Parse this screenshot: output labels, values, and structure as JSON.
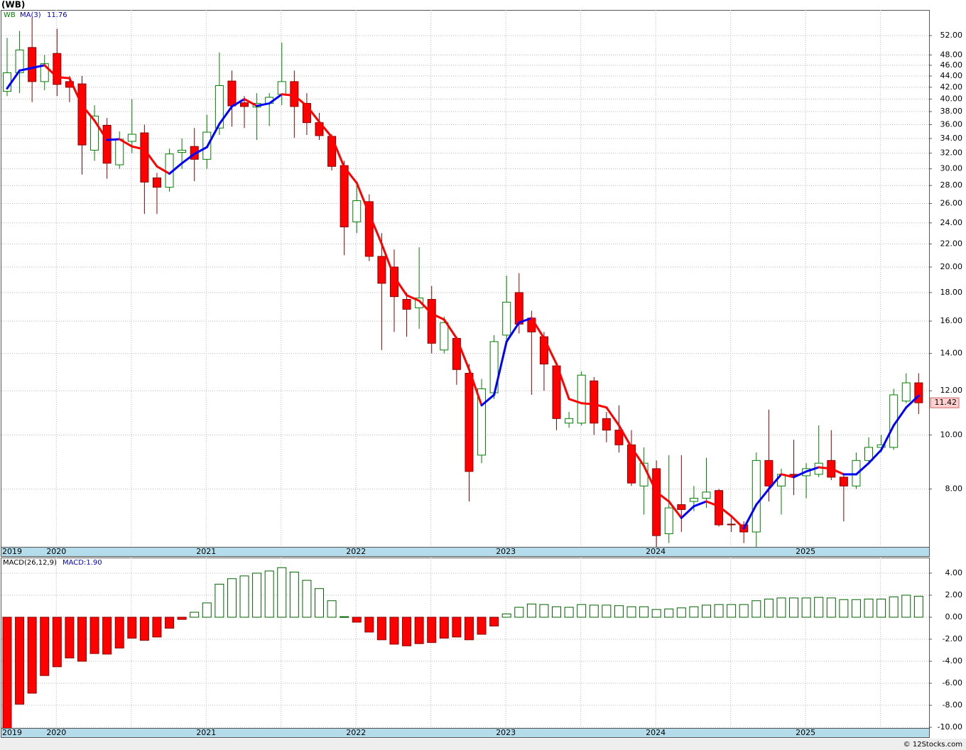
{
  "footer": "© 12Stocks.com",
  "chart_data": [
    {
      "type": "candlestick",
      "title": "(WB)",
      "symbol": "WB",
      "log": true,
      "grid": true,
      "categories": [
        "2019",
        null,
        null,
        null,
        "2020",
        null,
        null,
        null,
        null,
        null,
        null,
        null,
        null,
        null,
        null,
        null,
        "2021",
        null,
        null,
        null,
        null,
        null,
        null,
        null,
        null,
        null,
        null,
        null,
        "2022",
        null,
        null,
        null,
        null,
        null,
        null,
        null,
        null,
        null,
        null,
        null,
        "2023",
        null,
        null,
        null,
        null,
        null,
        null,
        null,
        null,
        null,
        null,
        null,
        "2024",
        null,
        null,
        null,
        null,
        null,
        null,
        null,
        null,
        null,
        null,
        null,
        "2025",
        null,
        null,
        null,
        null,
        null,
        null,
        null,
        null,
        null
      ],
      "open": [
        41.3,
        44.6,
        49.5,
        43,
        48.3,
        43,
        42.6,
        32.4,
        35.9,
        30.5,
        33.6,
        34.8,
        28.9,
        27.8,
        32.1,
        32.9,
        31.2,
        35.5,
        43.1,
        39.4,
        38.7,
        39.3,
        40.8,
        43,
        39.3,
        36.3,
        34.3,
        30.4,
        24.1,
        26.2,
        20.9,
        20,
        17.5,
        16.9,
        17.5,
        14.2,
        14.9,
        12.9,
        9.2,
        11.9,
        15.1,
        18,
        16.2,
        15,
        13.3,
        10.5,
        10.5,
        12.5,
        10.7,
        10.2,
        9.6,
        8.1,
        8.7,
        6.65,
        7.5,
        7.6,
        7.7,
        7.95,
        6.92,
        6.9,
        6.7,
        9.0,
        8.1,
        8.5,
        8.45,
        8.5,
        9.0,
        8.4,
        8.1,
        9.0,
        9.5,
        9.5,
        11.5,
        12.4
      ],
      "high": [
        51.5,
        53,
        56,
        48,
        53.5,
        44,
        44,
        39,
        37,
        35,
        40,
        36,
        29.5,
        32.6,
        34,
        35.5,
        37.5,
        48.5,
        45,
        40.5,
        41,
        41,
        50.5,
        45,
        41,
        37.8,
        34.6,
        31,
        28,
        27,
        23,
        21.5,
        18,
        21.7,
        18.5,
        16.3,
        15,
        13.4,
        12.6,
        15.1,
        19.3,
        19.5,
        16.7,
        15.3,
        13.5,
        11,
        13,
        12.7,
        11,
        11.3,
        10.2,
        9.5,
        9,
        9.2,
        9.2,
        8.1,
        9.1,
        8.0,
        7.1,
        7.0,
        9.3,
        11.1,
        8.7,
        9.8,
        8.9,
        10.4,
        10.2,
        8.5,
        9.3,
        9.9,
        10,
        12.1,
        12.9,
        12.9
      ],
      "low": [
        40.5,
        41,
        39.5,
        41.5,
        40.5,
        39.5,
        29.3,
        31,
        28.8,
        30,
        32,
        24.9,
        24.9,
        27.3,
        30,
        28.5,
        30,
        34.5,
        35.7,
        35.5,
        33.8,
        35.8,
        39,
        34.1,
        34.5,
        33.8,
        29.8,
        21,
        23,
        20.5,
        14.2,
        15.3,
        15,
        15.5,
        14,
        14,
        12.3,
        7.6,
        8.9,
        11.6,
        14.8,
        15.2,
        11.8,
        12,
        10.2,
        10.3,
        10.4,
        10,
        9.7,
        9.3,
        8.1,
        7.2,
        6.3,
        6.4,
        6.7,
        7.3,
        7.4,
        6.85,
        6.7,
        6.4,
        6.3,
        7.6,
        7.2,
        7.8,
        7.7,
        8.4,
        8.3,
        7.0,
        8.0,
        8.9,
        9.3,
        9.4,
        11.4,
        10.9
      ],
      "close": [
        44.6,
        49,
        43,
        46.3,
        42.5,
        42,
        33.1,
        37.3,
        30.7,
        33.9,
        34.6,
        28.4,
        27.8,
        31.9,
        32.4,
        31.2,
        34.9,
        42.3,
        38.9,
        38.8,
        39.3,
        40.3,
        43,
        38.8,
        36.3,
        34.4,
        30.3,
        23.6,
        26.3,
        20.9,
        18.7,
        17.7,
        16.8,
        17.6,
        14.6,
        15.9,
        13.1,
        8.6,
        12.1,
        14.7,
        17.3,
        15.8,
        15.3,
        13.4,
        10.7,
        10.7,
        12.8,
        10.5,
        10.2,
        9.6,
        8.2,
        8.9,
        6.6,
        7.4,
        7.35,
        7.7,
        7.9,
        6.9,
        6.9,
        6.7,
        9.0,
        8.1,
        8.5,
        8.45,
        8.7,
        8.9,
        8.4,
        8.1,
        9.0,
        9.5,
        9.6,
        11.8,
        12.4,
        11.42
      ],
      "up_color": "#008000",
      "down_color": "#ff0000",
      "down_edge": "#8b0000",
      "series": [
        {
          "name": "MA(3)",
          "up_color": "#0000ff",
          "down_color": "#ff0000",
          "values": [
            41.8,
            45,
            45.5,
            46,
            43.8,
            43.6,
            39,
            36.6,
            33.8,
            33.9,
            32.9,
            32.5,
            30.3,
            29.4,
            30.7,
            31.9,
            32.8,
            36.1,
            38.8,
            40,
            38.9,
            39.3,
            40.8,
            40.6,
            38.9,
            36.4,
            34.2,
            30.2,
            28.3,
            24.9,
            22,
            19.2,
            17.8,
            17.4,
            16.5,
            16.1,
            14.9,
            13.1,
            11.3,
            11.8,
            14.7,
            15.9,
            16.2,
            14.9,
            13.4,
            11.6,
            11.4,
            11.35,
            11.2,
            10.4,
            9.5,
            8.8,
            7.9,
            7.6,
            7.1,
            7.45,
            7.6,
            7.45,
            7.15,
            6.8,
            7.5,
            8.0,
            8.5,
            8.4,
            8.6,
            8.75,
            8.7,
            8.5,
            8.5,
            8.9,
            9.4,
            10.4,
            11.2,
            11.76
          ]
        }
      ],
      "ylim": [
        6.3,
        57.8
      ],
      "yticks": [
        {
          "value": 52,
          "label": "52.00"
        },
        {
          "value": 48,
          "label": "48.00"
        },
        {
          "value": 46,
          "label": "46.00"
        },
        {
          "value": 44,
          "label": "44.00"
        },
        {
          "value": 42,
          "label": "42.00"
        },
        {
          "value": 40,
          "label": "40.00"
        },
        {
          "value": 38,
          "label": "38.00"
        },
        {
          "value": 36,
          "label": "36.00"
        },
        {
          "value": 34,
          "label": "34.00"
        },
        {
          "value": 32,
          "label": "32.00"
        },
        {
          "value": 30,
          "label": "30.00"
        },
        {
          "value": 28,
          "label": "28.00"
        },
        {
          "value": 26,
          "label": "26.00"
        },
        {
          "value": 24,
          "label": "24.00"
        },
        {
          "value": 22,
          "label": "22.00"
        },
        {
          "value": 20,
          "label": "20.00"
        },
        {
          "value": 18,
          "label": "18.00"
        },
        {
          "value": 16,
          "label": "16.00"
        },
        {
          "value": 14,
          "label": "14.00"
        },
        {
          "value": 12,
          "label": "12.00"
        },
        {
          "value": 10,
          "label": "10.00"
        },
        {
          "value": 8,
          "label": "8.00"
        }
      ]
    },
    {
      "type": "bar",
      "grid": true,
      "legend_label": "MACD:1.90",
      "categories": [
        "2019",
        null,
        null,
        null,
        "2020",
        null,
        null,
        null,
        null,
        null,
        null,
        null,
        null,
        null,
        null,
        null,
        "2021",
        null,
        null,
        null,
        null,
        null,
        null,
        null,
        null,
        null,
        null,
        null,
        "2022",
        null,
        null,
        null,
        null,
        null,
        null,
        null,
        null,
        null,
        null,
        null,
        "2023",
        null,
        null,
        null,
        null,
        null,
        null,
        null,
        null,
        null,
        null,
        null,
        "2024",
        null,
        null,
        null,
        null,
        null,
        null,
        null,
        null,
        null,
        null,
        null,
        "2025",
        null,
        null,
        null,
        null,
        null,
        null,
        null,
        null,
        null
      ],
      "series": [
        {
          "name": "MACD(26,12,9)",
          "up_color": "#006400",
          "down_color": "#ff0000",
          "values": [
            -10.3,
            -7.9,
            -6.9,
            -5.3,
            -4.5,
            -3.7,
            -4.0,
            -3.3,
            -3.35,
            -2.8,
            -1.9,
            -2.1,
            -1.8,
            -1.0,
            -0.2,
            0.45,
            1.3,
            3.0,
            3.5,
            3.75,
            4.0,
            4.2,
            4.5,
            4.1,
            3.35,
            2.6,
            1.5,
            0.05,
            -0.45,
            -1.35,
            -2.05,
            -2.45,
            -2.6,
            -2.4,
            -2.3,
            -1.9,
            -1.8,
            -2.05,
            -1.55,
            -0.8,
            0.3,
            0.9,
            1.2,
            1.15,
            0.95,
            0.9,
            1.15,
            1.1,
            1.1,
            1.05,
            0.95,
            0.95,
            0.7,
            0.75,
            0.85,
            0.95,
            1.1,
            1.15,
            1.15,
            1.15,
            1.5,
            1.65,
            1.75,
            1.75,
            1.75,
            1.8,
            1.75,
            1.6,
            1.6,
            1.65,
            1.65,
            1.85,
            2.0,
            1.9
          ]
        }
      ],
      "ylim": [
        -10.06,
        5.42
      ],
      "yticks": [
        {
          "value": 4,
          "label": "4.00"
        },
        {
          "value": 2,
          "label": "2.00"
        },
        {
          "value": 0,
          "label": "0.00"
        },
        {
          "value": -2,
          "label": "-2.00"
        },
        {
          "value": -4,
          "label": "-4.00"
        },
        {
          "value": -6,
          "label": "-6.00"
        },
        {
          "value": -8,
          "label": "-8.00"
        },
        {
          "value": -10,
          "label": "-10.00"
        }
      ]
    }
  ]
}
